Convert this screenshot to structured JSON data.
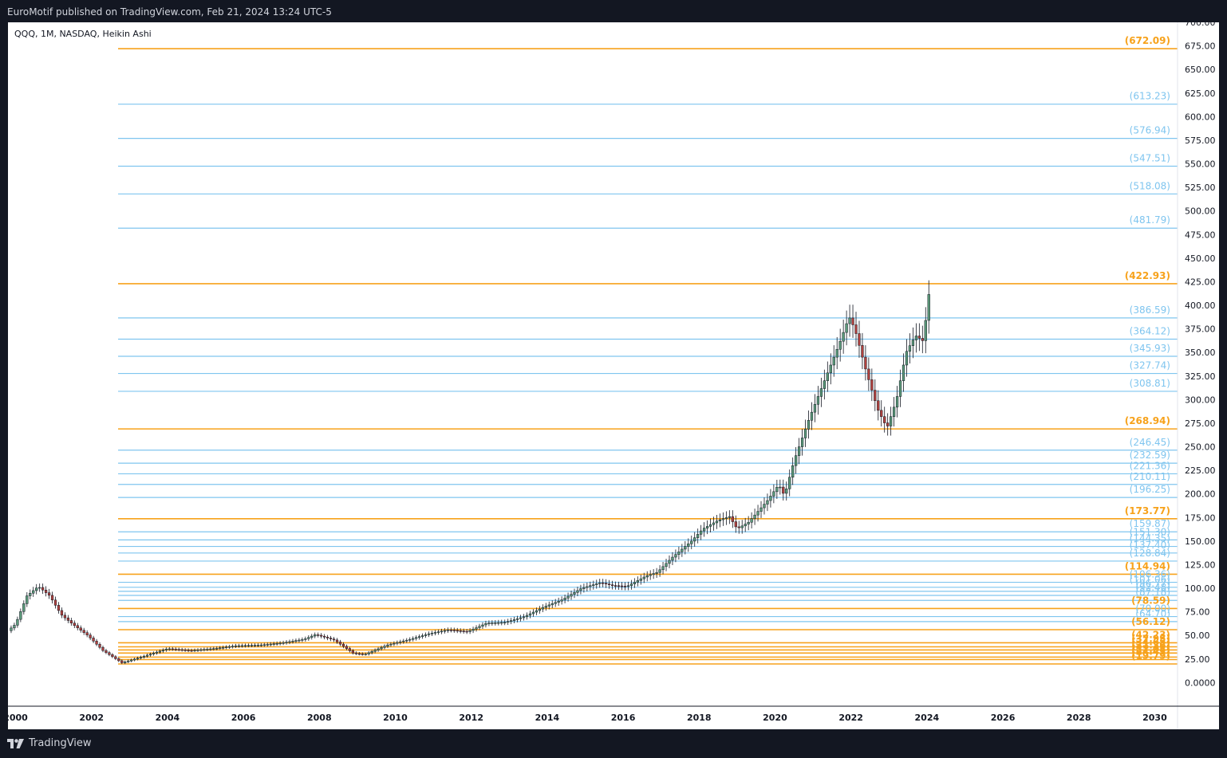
{
  "header": {
    "published_text": "EuroMotif published on TradingView.com, Feb 21, 2024 13:24 UTC-5"
  },
  "footer": {
    "brand": "TradingView",
    "logo_icon": "tradingview-logo-icon"
  },
  "chart_data": {
    "type": "candlestick",
    "title": "QQQ, 1M, NASDAQ, Heikin Ashi",
    "x_axis": {
      "ticks": [
        "2000",
        "2002",
        "2004",
        "2006",
        "2008",
        "2010",
        "2012",
        "2014",
        "2016",
        "2018",
        "2020",
        "2022",
        "2024",
        "2026",
        "2028",
        "2030"
      ],
      "range": [
        1999.8,
        2030.6
      ]
    },
    "y_axis": {
      "ticks": [
        "0.0000",
        "25.00",
        "50.00",
        "75.00",
        "100.00",
        "125.00",
        "150.00",
        "175.00",
        "200.00",
        "225.00",
        "250.00",
        "275.00",
        "300.00",
        "325.00",
        "350.00",
        "375.00",
        "400.00",
        "425.00",
        "450.00",
        "475.00",
        "500.00",
        "525.00",
        "550.00",
        "575.00",
        "600.00",
        "625.00",
        "650.00",
        "675.00",
        "700.00"
      ],
      "range": [
        -25,
        700
      ]
    },
    "colors": {
      "up": "#26a69a",
      "down": "#ef5350",
      "candle_up_body": "#5b9a7a",
      "candle_down_body": "#b0413e",
      "level_orange": "#f7a21b",
      "level_blue": "#7fc5ef",
      "axis_text": "#131722"
    },
    "levels": [
      {
        "value": 672.09,
        "label": "(672.09)",
        "color": "orange"
      },
      {
        "value": 613.23,
        "label": "(613.23)",
        "color": "blue"
      },
      {
        "value": 576.94,
        "label": "(576.94)",
        "color": "blue"
      },
      {
        "value": 547.51,
        "label": "(547.51)",
        "color": "blue"
      },
      {
        "value": 518.08,
        "label": "(518.08)",
        "color": "blue"
      },
      {
        "value": 481.79,
        "label": "(481.79)",
        "color": "blue"
      },
      {
        "value": 422.93,
        "label": "(422.93)",
        "color": "orange"
      },
      {
        "value": 386.59,
        "label": "(386.59)",
        "color": "blue"
      },
      {
        "value": 364.12,
        "label": "(364.12)",
        "color": "blue"
      },
      {
        "value": 345.93,
        "label": "(345.93)",
        "color": "blue"
      },
      {
        "value": 327.74,
        "label": "(327.74)",
        "color": "blue"
      },
      {
        "value": 308.81,
        "label": "(308.81)",
        "color": "blue"
      },
      {
        "value": 268.94,
        "label": "(268.94)",
        "color": "orange"
      },
      {
        "value": 246.45,
        "label": "(246.45)",
        "color": "blue"
      },
      {
        "value": 232.59,
        "label": "(232.59)",
        "color": "blue"
      },
      {
        "value": 221.36,
        "label": "(221.36)",
        "color": "blue"
      },
      {
        "value": 210.11,
        "label": "(210.11)",
        "color": "blue"
      },
      {
        "value": 196.25,
        "label": "(196.25)",
        "color": "blue"
      },
      {
        "value": 173.77,
        "label": "(173.77)",
        "color": "orange"
      },
      {
        "value": 159.87,
        "label": "(159.87)",
        "color": "blue"
      },
      {
        "value": 151.3,
        "label": "(151.30)",
        "color": "blue"
      },
      {
        "value": 144.35,
        "label": "(144.35)",
        "color": "blue"
      },
      {
        "value": 137.4,
        "label": "(137.40)",
        "color": "blue"
      },
      {
        "value": 128.84,
        "label": "(128.84)",
        "color": "blue"
      },
      {
        "value": 114.94,
        "label": "(114.94)",
        "color": "orange"
      },
      {
        "value": 106.36,
        "label": "(106.36)",
        "color": "blue"
      },
      {
        "value": 101.06,
        "label": "(101.06)",
        "color": "blue"
      },
      {
        "value": 96.77,
        "label": "(96.77)",
        "color": "blue"
      },
      {
        "value": 92.48,
        "label": "(92.48)",
        "color": "blue"
      },
      {
        "value": 87.18,
        "label": "(87.18)",
        "color": "blue"
      },
      {
        "value": 78.59,
        "label": "(78.59)",
        "color": "orange"
      },
      {
        "value": 70.0,
        "label": "(70.00)",
        "color": "blue"
      },
      {
        "value": 64.7,
        "label": "(64.70)",
        "color": "blue"
      },
      {
        "value": 56.12,
        "label": "(56.12)",
        "color": "orange"
      },
      {
        "value": 42.23,
        "label": "(42.23)",
        "color": "orange"
      },
      {
        "value": 37.95,
        "label": "(37.95)",
        "color": "orange"
      },
      {
        "value": 34.65,
        "label": "(34.65)",
        "color": "orange"
      },
      {
        "value": 31.36,
        "label": "(31.36)",
        "color": "orange"
      },
      {
        "value": 27.08,
        "label": "(27.08)",
        "color": "orange"
      },
      {
        "value": 24.43,
        "label": "(24.43)",
        "color": "orange"
      },
      {
        "value": 19.79,
        "label": "(19.79)",
        "color": "orange"
      }
    ],
    "level_line_start_x": 2002.7,
    "price_path": [
      [
        1999.8,
        55
      ],
      [
        2000.0,
        62
      ],
      [
        2000.3,
        92
      ],
      [
        2000.6,
        102
      ],
      [
        2000.9,
        92
      ],
      [
        2001.2,
        72
      ],
      [
        2001.5,
        62
      ],
      [
        2001.9,
        50
      ],
      [
        2002.3,
        34
      ],
      [
        2002.8,
        21
      ],
      [
        2003.3,
        27
      ],
      [
        2004.0,
        36
      ],
      [
        2004.6,
        34
      ],
      [
        2005.2,
        36
      ],
      [
        2005.8,
        39
      ],
      [
        2006.5,
        40
      ],
      [
        2007.0,
        42
      ],
      [
        2007.6,
        46
      ],
      [
        2007.9,
        51
      ],
      [
        2008.4,
        45
      ],
      [
        2008.9,
        31
      ],
      [
        2009.2,
        30
      ],
      [
        2009.8,
        40
      ],
      [
        2010.4,
        46
      ],
      [
        2010.9,
        52
      ],
      [
        2011.4,
        56
      ],
      [
        2011.9,
        54
      ],
      [
        2012.4,
        63
      ],
      [
        2012.9,
        64
      ],
      [
        2013.4,
        70
      ],
      [
        2013.9,
        80
      ],
      [
        2014.4,
        88
      ],
      [
        2014.9,
        100
      ],
      [
        2015.4,
        106
      ],
      [
        2015.7,
        103
      ],
      [
        2016.1,
        102
      ],
      [
        2016.6,
        113
      ],
      [
        2016.9,
        117
      ],
      [
        2017.3,
        133
      ],
      [
        2017.8,
        150
      ],
      [
        2018.1,
        163
      ],
      [
        2018.5,
        172
      ],
      [
        2018.8,
        176
      ],
      [
        2019.0,
        163
      ],
      [
        2019.3,
        170
      ],
      [
        2019.8,
        193
      ],
      [
        2020.1,
        210
      ],
      [
        2020.25,
        198
      ],
      [
        2020.5,
        235
      ],
      [
        2020.9,
        280
      ],
      [
        2021.3,
        320
      ],
      [
        2021.7,
        360
      ],
      [
        2021.95,
        388
      ],
      [
        2022.1,
        375
      ],
      [
        2022.4,
        330
      ],
      [
        2022.7,
        290
      ],
      [
        2022.95,
        270
      ],
      [
        2023.2,
        300
      ],
      [
        2023.45,
        350
      ],
      [
        2023.7,
        368
      ],
      [
        2023.9,
        362
      ],
      [
        2024.0,
        395
      ],
      [
        2024.1,
        428
      ]
    ]
  }
}
